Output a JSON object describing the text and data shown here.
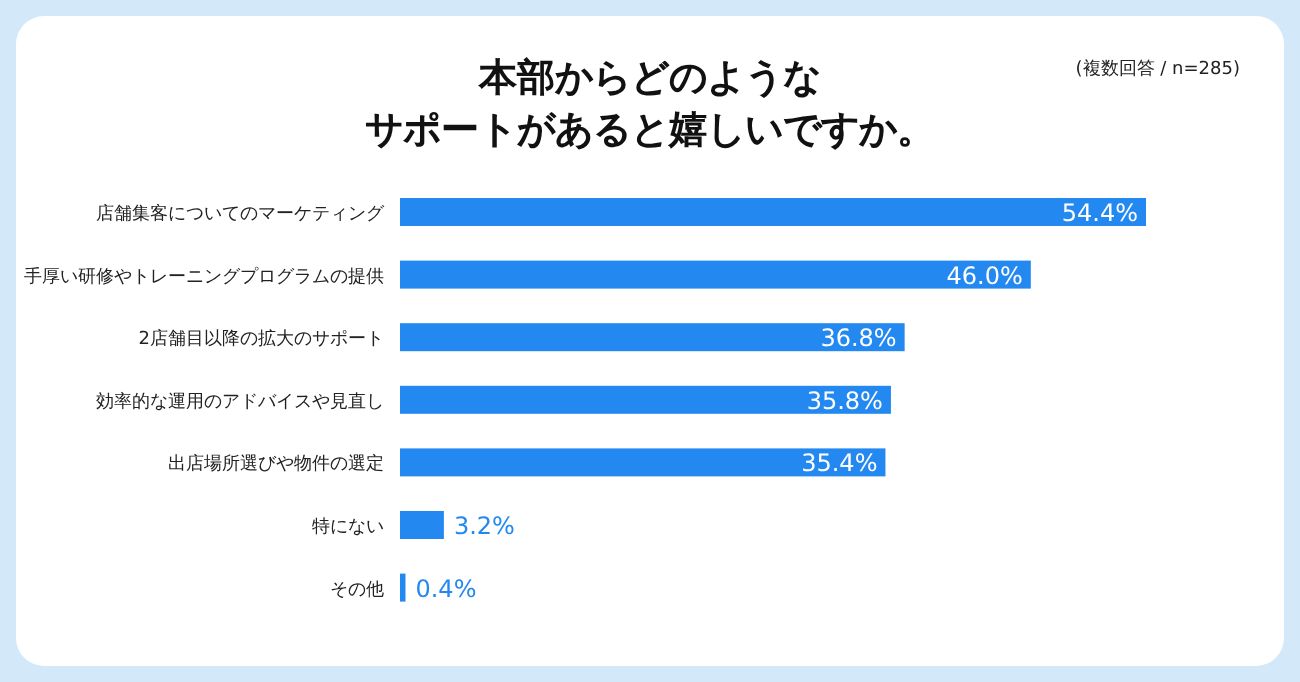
{
  "chart_data": {
    "type": "bar",
    "orientation": "horizontal",
    "title": "本部からどのような",
    "subtitle": "サポートがあると嬉しいですか。",
    "annotations": [
      "(複数回答 / n=285)"
    ],
    "categories": [
      "店舗集客についてのマーケティング",
      "手厚い研修やトレーニングプログラムの提供",
      "2店舗目以降の拡大のサポート",
      "効率的な運用のアドバイスや見直し",
      "出店場所選びや物件の選定",
      "特にない",
      "その他"
    ],
    "values": [
      54.4,
      46.0,
      36.8,
      35.8,
      35.4,
      3.2,
      0.4
    ],
    "value_labels": [
      "54.4%",
      "46.0%",
      "36.8%",
      "35.8%",
      "35.4%",
      "3.2%",
      "0.4%"
    ],
    "color": "#2389f0"
  }
}
